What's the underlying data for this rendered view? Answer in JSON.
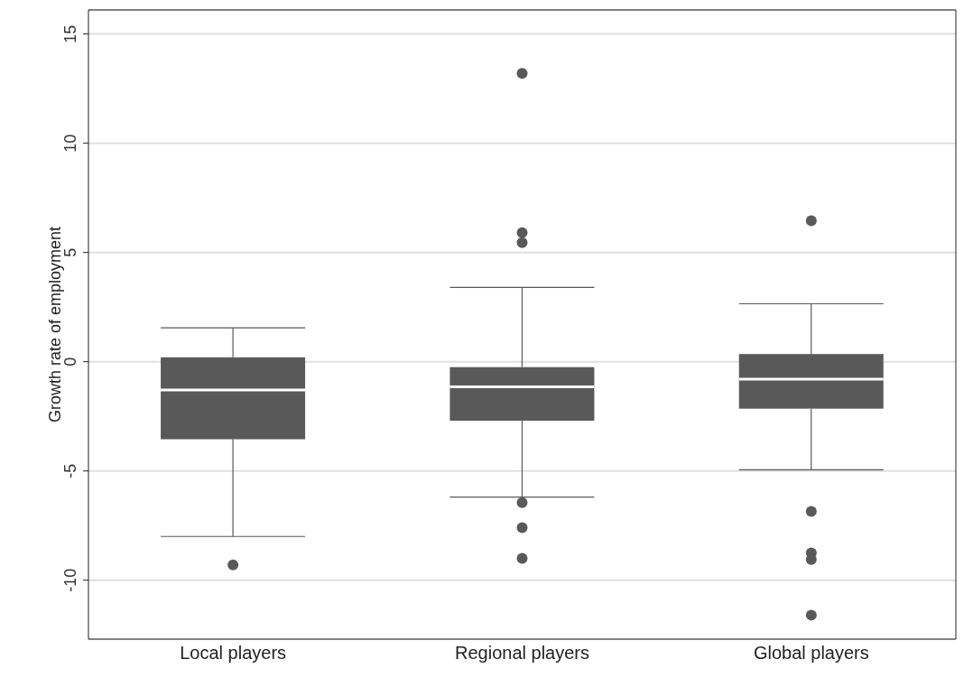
{
  "chart_data": {
    "type": "box",
    "ylabel": "Growth rate of employment",
    "categories": [
      "Local players",
      "Regional players",
      "Global players"
    ],
    "color": "#595959",
    "ylim": [
      -12.7,
      16.1
    ],
    "yticks": [
      -10,
      -5,
      0,
      5,
      10,
      15
    ],
    "grid": "y",
    "legend": false,
    "boxes": [
      {
        "low": -8,
        "q1": -3.55,
        "median": -1.3,
        "q3": 0.2,
        "high": 1.55,
        "outliers": [
          -9.3
        ]
      },
      {
        "low": -6.2,
        "q1": -2.7,
        "median": -1.15,
        "q3": -0.25,
        "high": 3.4,
        "outliers": [
          13.2,
          5.9,
          5.45,
          -6.45,
          -7.6,
          -9.0
        ]
      },
      {
        "low": -4.95,
        "q1": -2.15,
        "median": -0.8,
        "q3": 0.35,
        "high": 2.65,
        "outliers": [
          6.45,
          -6.85,
          -8.75,
          -9.05,
          -11.6
        ]
      }
    ]
  }
}
